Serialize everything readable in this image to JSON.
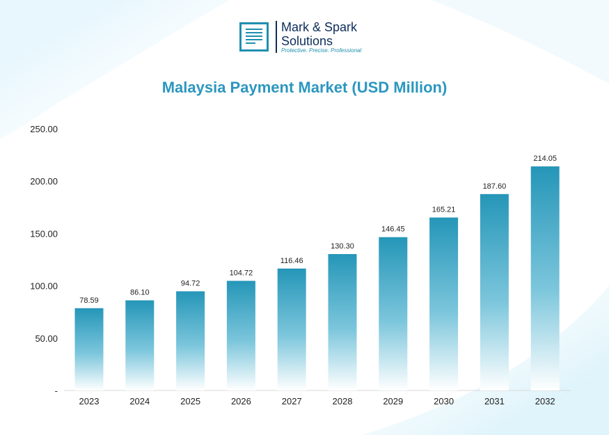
{
  "brand": {
    "name_line1": "Mark & Spark",
    "name_line2": "Solutions",
    "tagline": "Protective. Precise. Professional"
  },
  "colors": {
    "title": "#2b97bf",
    "bar_top": "#2596b8",
    "bar_bottom": "#ffffff",
    "brand_dark": "#0d2c5c"
  },
  "chart_data": {
    "type": "bar",
    "title": "Malaysia Payment Market (USD Million)",
    "categories": [
      "2023",
      "2024",
      "2025",
      "2026",
      "2027",
      "2028",
      "2029",
      "2030",
      "2031",
      "2032"
    ],
    "values": [
      78.59,
      86.1,
      94.72,
      104.72,
      116.46,
      130.3,
      146.45,
      165.21,
      187.6,
      214.05
    ],
    "data_labels": [
      "78.59",
      "86.10",
      "94.72",
      "104.72",
      "116.46",
      "130.30",
      "146.45",
      "165.21",
      "187.60",
      "214.05"
    ],
    "ylim": [
      0,
      250
    ],
    "yticks": [
      0,
      50,
      100,
      150,
      200,
      250
    ],
    "ytick_labels": [
      "-",
      "50.00",
      "100.00",
      "150.00",
      "200.00",
      "250.00"
    ],
    "xlabel": "",
    "ylabel": "",
    "grid": false
  }
}
